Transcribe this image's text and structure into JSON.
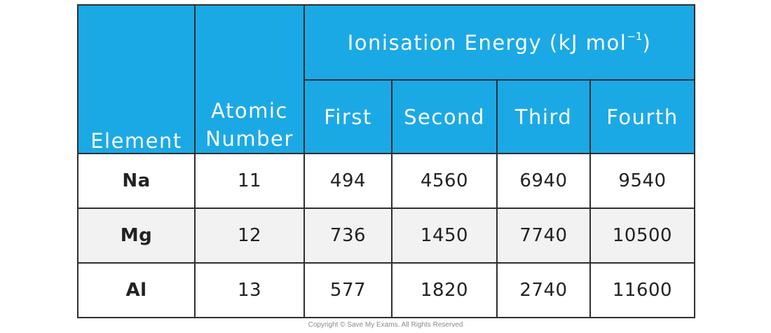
{
  "table": {
    "headers": {
      "element": "Element",
      "atomic_number_line1": "Atomic",
      "atomic_number_line2": "Number",
      "ionisation_group_text": "Ionisation Energy (kJ mol",
      "ionisation_group_sup": "−1",
      "ionisation_group_close": ")",
      "sub": [
        "First",
        "Second",
        "Third",
        "Fourth"
      ]
    },
    "rows": [
      {
        "element": "Na",
        "atomic_number": "11",
        "first": "494",
        "second": "4560",
        "third": "6940",
        "fourth": "9540"
      },
      {
        "element": "Mg",
        "atomic_number": "12",
        "first": "736",
        "second": "1450",
        "third": "7740",
        "fourth": "10500"
      },
      {
        "element": "Al",
        "atomic_number": "13",
        "first": "577",
        "second": "1820",
        "third": "2740",
        "fourth": "11600"
      }
    ]
  },
  "footer": {
    "copyright": "Copyright © Save My Exams. All Rights Reserved"
  },
  "colors": {
    "header_blue": "#1ba9e6",
    "row_alt_grey": "#f2f2f2",
    "border": "#2f2f2f"
  }
}
